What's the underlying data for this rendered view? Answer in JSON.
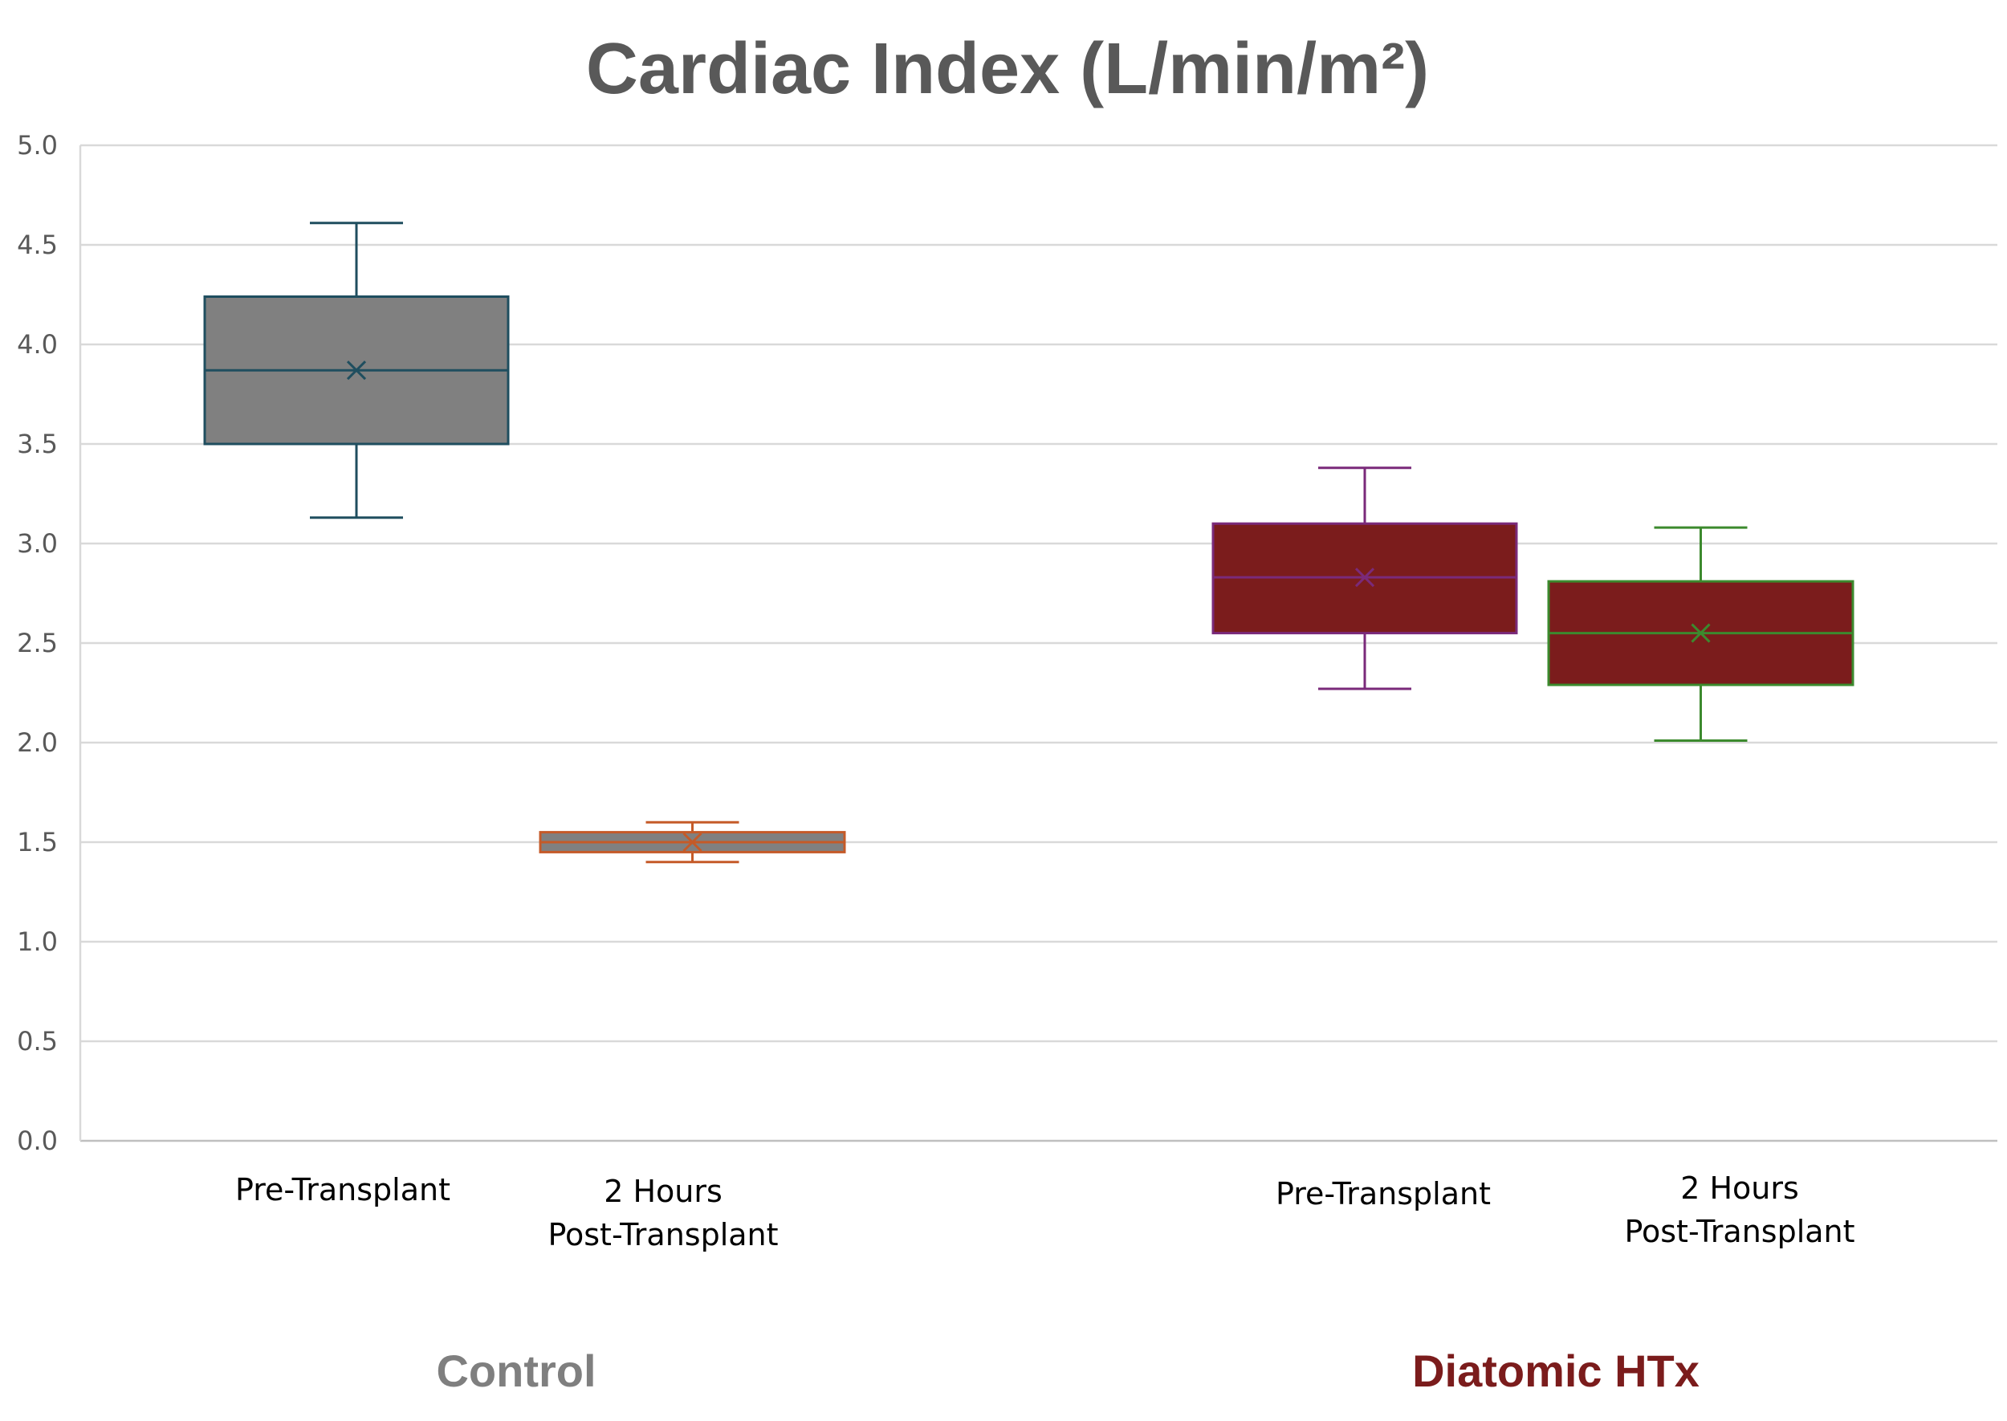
{
  "chart_data": {
    "type": "box",
    "title": "Cardiac Index (L/min/m²)",
    "xlabel": "",
    "ylabel": "",
    "ylim": [
      0,
      5
    ],
    "y_ticks": [
      "0.0",
      "0.5",
      "1.0",
      "1.5",
      "2.0",
      "2.5",
      "3.0",
      "3.5",
      "4.0",
      "4.5",
      "5.0"
    ],
    "grid": true,
    "legend": "none",
    "groups": [
      {
        "name": "Control",
        "color": "#7f7f7f"
      },
      {
        "name": "Diatomic HTx",
        "color": "#7b1c1c"
      }
    ],
    "boxes": [
      {
        "group": "Control",
        "label_lines": [
          "Pre-Transplant"
        ],
        "min": 3.13,
        "q1": 3.5,
        "median": 3.87,
        "q3": 4.24,
        "max": 4.61,
        "mean": 3.87,
        "fill": "#808080",
        "stroke": "#1f4e5f"
      },
      {
        "group": "Control",
        "label_lines": [
          "2 Hours",
          "Post-Transplant"
        ],
        "min": 1.4,
        "q1": 1.45,
        "median": 1.5,
        "q3": 1.55,
        "max": 1.6,
        "mean": 1.5,
        "fill": "#808080",
        "stroke": "#c55a28"
      },
      {
        "group": "Diatomic HTx",
        "label_lines": [
          "Pre-Transplant"
        ],
        "min": 2.27,
        "q1": 2.55,
        "median": 2.83,
        "q3": 3.1,
        "max": 3.38,
        "mean": 2.83,
        "fill": "#7b1c1c",
        "stroke": "#7a2a7a"
      },
      {
        "group": "Diatomic HTx",
        "label_lines": [
          "2 Hours",
          "Post-Transplant"
        ],
        "min": 2.01,
        "q1": 2.29,
        "median": 2.55,
        "q3": 2.81,
        "max": 3.08,
        "mean": 2.55,
        "fill": "#7b1c1c",
        "stroke": "#3c8a2e"
      }
    ]
  }
}
